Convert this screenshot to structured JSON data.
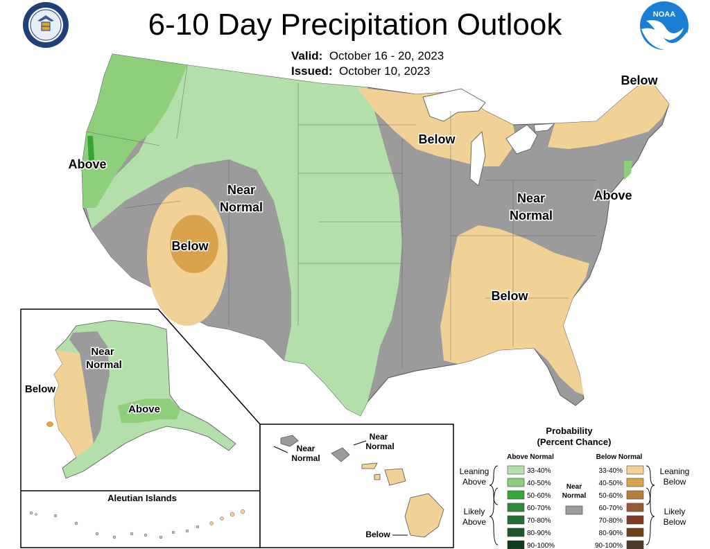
{
  "header": {
    "title": "6-10 Day Precipitation Outlook",
    "valid_label": "Valid:",
    "valid_value": "October 16 - 20, 2023",
    "issued_label": "Issued:",
    "issued_value": "October 10, 2023"
  },
  "logos": {
    "left": "department-of-commerce-seal",
    "right": "noaa-logo",
    "noaa_text": "NOAA"
  },
  "map_labels": {
    "above_west": "Above",
    "near_normal_west_1": "Near",
    "near_normal_west_2": "Normal",
    "below_southwest": "Below",
    "below_great_lakes": "Below",
    "below_northeast": "Below",
    "near_normal_east_1": "Near",
    "near_normal_east_2": "Normal",
    "above_east": "Above",
    "below_southeast": "Below"
  },
  "alaska": {
    "near_1": "Near",
    "near_2": "Normal",
    "below": "Below",
    "above": "Above",
    "aleutian_title": "Aleutian Islands"
  },
  "hawaii": {
    "near_a_1": "Near",
    "near_a_2": "Normal",
    "near_b_1": "Near",
    "near_b_2": "Normal",
    "below": "Below"
  },
  "legend": {
    "title_1": "Probability",
    "title_2": "(Percent Chance)",
    "above_header": "Above Normal",
    "below_header": "Below Normal",
    "near_1": "Near",
    "near_2": "Normal",
    "leaning_above_1": "Leaning",
    "leaning_above_2": "Above",
    "likely_above_1": "Likely",
    "likely_above_2": "Above",
    "leaning_below_1": "Leaning",
    "leaning_below_2": "Below",
    "likely_below_1": "Likely",
    "likely_below_2": "Below",
    "above_bins": [
      {
        "label": "33-40%",
        "color": "#b3dfab"
      },
      {
        "label": "40-50%",
        "color": "#8ecf7c"
      },
      {
        "label": "50-60%",
        "color": "#37a637"
      },
      {
        "label": "60-70%",
        "color": "#2c8a3c"
      },
      {
        "label": "70-80%",
        "color": "#246e34"
      },
      {
        "label": "80-90%",
        "color": "#1b552a"
      },
      {
        "label": "90-100%",
        "color": "#123b1d"
      }
    ],
    "below_bins": [
      {
        "label": "33-40%",
        "color": "#f2d196"
      },
      {
        "label": "40-50%",
        "color": "#d9a34c"
      },
      {
        "label": "50-60%",
        "color": "#b87d3a"
      },
      {
        "label": "60-70%",
        "color": "#9a5a31"
      },
      {
        "label": "70-80%",
        "color": "#823d28"
      },
      {
        "label": "80-90%",
        "color": "#6e4218"
      },
      {
        "label": "90-100%",
        "color": "#4d3a25"
      }
    ],
    "near_color": "#9b9b9b"
  }
}
